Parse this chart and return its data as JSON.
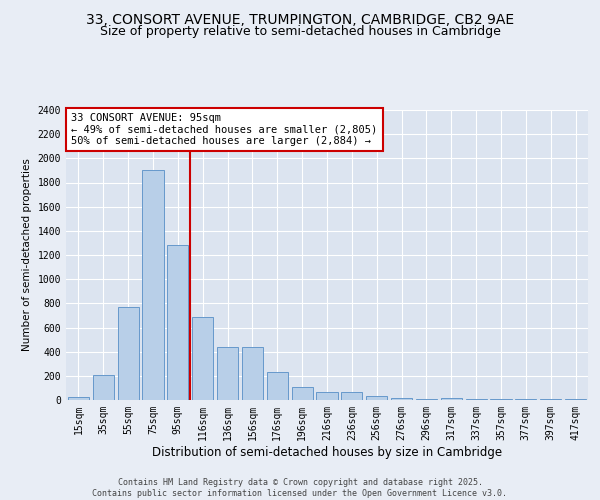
{
  "title1": "33, CONSORT AVENUE, TRUMPINGTON, CAMBRIDGE, CB2 9AE",
  "title2": "Size of property relative to semi-detached houses in Cambridge",
  "xlabel": "Distribution of semi-detached houses by size in Cambridge",
  "ylabel": "Number of semi-detached properties",
  "bar_color": "#b8cfe8",
  "bar_edge_color": "#6699cc",
  "background_color": "#e8edf5",
  "plot_bg_color": "#dce4f0",
  "grid_color": "#ffffff",
  "annotation_line_color": "#cc0000",
  "annotation_box_color": "#cc0000",
  "categories": [
    "15sqm",
    "35sqm",
    "55sqm",
    "75sqm",
    "95sqm",
    "116sqm",
    "136sqm",
    "156sqm",
    "176sqm",
    "196sqm",
    "216sqm",
    "236sqm",
    "256sqm",
    "276sqm",
    "296sqm",
    "317sqm",
    "337sqm",
    "357sqm",
    "377sqm",
    "397sqm",
    "417sqm"
  ],
  "values": [
    22,
    205,
    770,
    1900,
    1280,
    690,
    435,
    435,
    230,
    105,
    65,
    65,
    30,
    20,
    10,
    18,
    5,
    5,
    5,
    5,
    5
  ],
  "annotation_text": "33 CONSORT AVENUE: 95sqm\n← 49% of semi-detached houses are smaller (2,805)\n50% of semi-detached houses are larger (2,884) →",
  "vline_index": 4,
  "ylim": [
    0,
    2400
  ],
  "yticks": [
    0,
    200,
    400,
    600,
    800,
    1000,
    1200,
    1400,
    1600,
    1800,
    2000,
    2200,
    2400
  ],
  "footer": "Contains HM Land Registry data © Crown copyright and database right 2025.\nContains public sector information licensed under the Open Government Licence v3.0.",
  "title1_fontsize": 10,
  "title2_fontsize": 9,
  "xlabel_fontsize": 8.5,
  "ylabel_fontsize": 7.5,
  "tick_fontsize": 7,
  "annotation_fontsize": 7.5,
  "footer_fontsize": 6
}
